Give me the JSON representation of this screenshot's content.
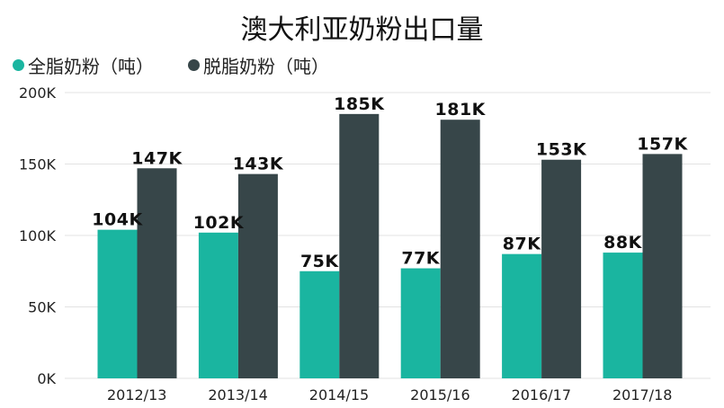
{
  "title": "澳大利亚奶粉出口量",
  "colors": {
    "series_0": "#1ab5a0",
    "series_1": "#374649",
    "grid": "#e3e3e3",
    "axis_text": "#222222"
  },
  "chart_data": {
    "type": "bar",
    "categories": [
      "2012/13",
      "2013/14",
      "2014/15",
      "2015/16",
      "2016/17",
      "2017/18"
    ],
    "series": [
      {
        "name": "全脂奶粉（吨）",
        "values": [
          104,
          102,
          75,
          77,
          87,
          88
        ],
        "labels": [
          "104K",
          "102K",
          "75K",
          "77K",
          "87K",
          "88K"
        ]
      },
      {
        "name": "脱脂奶粉（吨）",
        "values": [
          147,
          143,
          185,
          181,
          153,
          157
        ],
        "labels": [
          "147K",
          "143K",
          "185K",
          "181K",
          "153K",
          "157K"
        ]
      }
    ],
    "value_unit": "thousand tonnes",
    "ylim": [
      0,
      200
    ],
    "yticks": [
      0,
      50,
      100,
      150,
      200
    ],
    "ytick_labels": [
      "0K",
      "50K",
      "100K",
      "150K",
      "200K"
    ],
    "grid": true,
    "legend_position": "top-left"
  }
}
